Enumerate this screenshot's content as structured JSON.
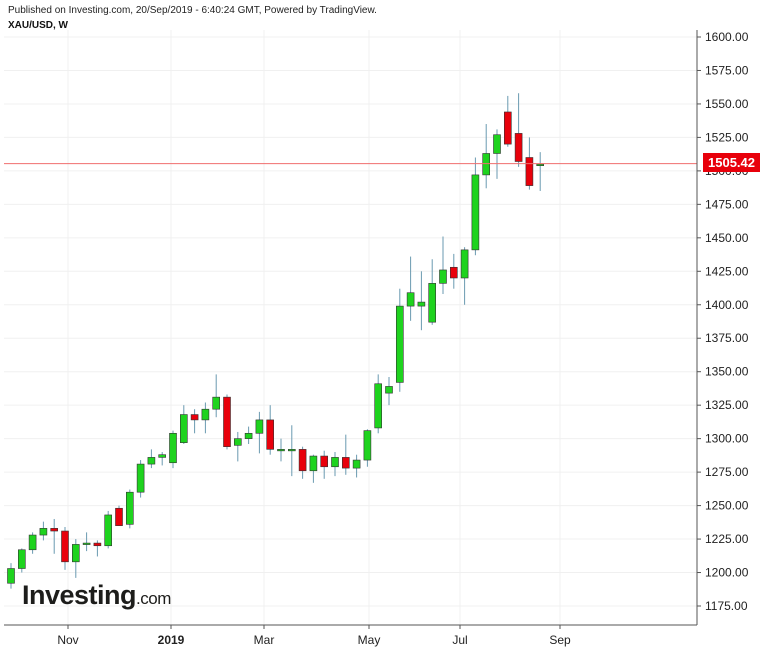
{
  "header": {
    "published": "Published on Investing.com, 20/Sep/2019 - 6:40:24 GMT, Powered by TradingView.",
    "symbol": "XAU/USD, W"
  },
  "logo": {
    "main": "Investing",
    "suffix": ".com"
  },
  "last_price_label": "1505.42",
  "colors": {
    "up": "#1ed31e",
    "down": "#e8000b",
    "wick": "#6a9ab0",
    "last_line": "#f06e6e"
  },
  "chart_data": {
    "type": "candlestick",
    "title": "XAU/USD, W",
    "ylim": [
      1160,
      1610
    ],
    "y_ticks": [
      "1175.00",
      "1200.00",
      "1225.00",
      "1250.00",
      "1275.00",
      "1300.00",
      "1325.00",
      "1350.00",
      "1375.00",
      "1400.00",
      "1425.00",
      "1450.00",
      "1475.00",
      "1500.00",
      "1525.00",
      "1550.00",
      "1575.00",
      "1600.00"
    ],
    "x_labels": [
      "Nov",
      "2019",
      "Mar",
      "May",
      "Jul",
      "Sep"
    ],
    "last_price": 1505.42,
    "candles": [
      [
        1192,
        1207,
        1188,
        1203
      ],
      [
        1203,
        1218,
        1200,
        1217
      ],
      [
        1217,
        1230,
        1214,
        1228
      ],
      [
        1228,
        1238,
        1224,
        1233
      ],
      [
        1233,
        1240,
        1214,
        1231
      ],
      [
        1231,
        1234,
        1202,
        1208
      ],
      [
        1208,
        1225,
        1196,
        1221
      ],
      [
        1221,
        1230,
        1216,
        1222
      ],
      [
        1222,
        1224,
        1212,
        1220
      ],
      [
        1220,
        1246,
        1218,
        1243
      ],
      [
        1248,
        1250,
        1235,
        1235
      ],
      [
        1236,
        1262,
        1233,
        1260
      ],
      [
        1260,
        1284,
        1256,
        1281
      ],
      [
        1281,
        1292,
        1278,
        1286
      ],
      [
        1286,
        1290,
        1280,
        1288
      ],
      [
        1282,
        1306,
        1278,
        1304
      ],
      [
        1297,
        1325,
        1296,
        1318
      ],
      [
        1318,
        1322,
        1304,
        1314
      ],
      [
        1314,
        1327,
        1304,
        1322
      ],
      [
        1322,
        1348,
        1316,
        1331
      ],
      [
        1331,
        1333,
        1292,
        1294
      ],
      [
        1295,
        1305,
        1283,
        1300
      ],
      [
        1300,
        1309,
        1296,
        1304
      ],
      [
        1304,
        1320,
        1289,
        1314
      ],
      [
        1314,
        1325,
        1288,
        1292
      ],
      [
        1292,
        1300,
        1283,
        1292
      ],
      [
        1292,
        1310,
        1272,
        1292
      ],
      [
        1292,
        1294,
        1270,
        1276
      ],
      [
        1276,
        1288,
        1267,
        1287
      ],
      [
        1287,
        1291,
        1270,
        1279
      ],
      [
        1279,
        1290,
        1272,
        1286
      ],
      [
        1286,
        1303,
        1273,
        1278
      ],
      [
        1278,
        1288,
        1271,
        1284
      ],
      [
        1284,
        1307,
        1279,
        1306
      ],
      [
        1308,
        1348,
        1304,
        1341
      ],
      [
        1334,
        1346,
        1325,
        1339
      ],
      [
        1342,
        1412,
        1335,
        1399
      ],
      [
        1399,
        1436,
        1388,
        1409
      ],
      [
        1399,
        1425,
        1381,
        1402
      ],
      [
        1387,
        1434,
        1385,
        1416
      ],
      [
        1416,
        1451,
        1408,
        1426
      ],
      [
        1428,
        1438,
        1412,
        1420
      ],
      [
        1420,
        1443,
        1400,
        1441
      ],
      [
        1441,
        1510,
        1437,
        1497
      ],
      [
        1497,
        1535,
        1487,
        1513
      ],
      [
        1513,
        1531,
        1494,
        1527
      ],
      [
        1544,
        1556,
        1518,
        1520
      ],
      [
        1528,
        1558,
        1503,
        1507
      ],
      [
        1510,
        1525,
        1486,
        1489
      ],
      [
        1504,
        1514,
        1485,
        1505
      ]
    ]
  }
}
